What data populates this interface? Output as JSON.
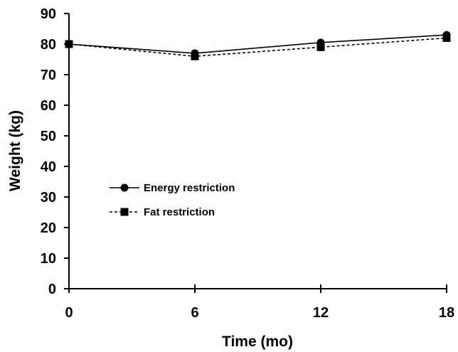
{
  "chart_data": {
    "type": "line",
    "xlabel": "Time (mo)",
    "ylabel": "Weight (kg)",
    "xlim": [
      0,
      18
    ],
    "ylim": [
      0,
      90
    ],
    "xticks": [
      0,
      6,
      12,
      18
    ],
    "yticks": [
      0,
      10,
      20,
      30,
      40,
      50,
      60,
      70,
      80,
      90
    ],
    "grid": false,
    "legend_position": "center-left",
    "x": [
      0,
      6,
      12,
      18
    ],
    "series": [
      {
        "name": "Energy restriction",
        "values": [
          80,
          77,
          80.5,
          83
        ],
        "marker": "circle",
        "line_style": "solid",
        "color": "#000000"
      },
      {
        "name": "Fat restriction",
        "values": [
          80,
          76,
          79,
          82
        ],
        "marker": "square",
        "line_style": "dashed",
        "color": "#000000"
      }
    ]
  }
}
